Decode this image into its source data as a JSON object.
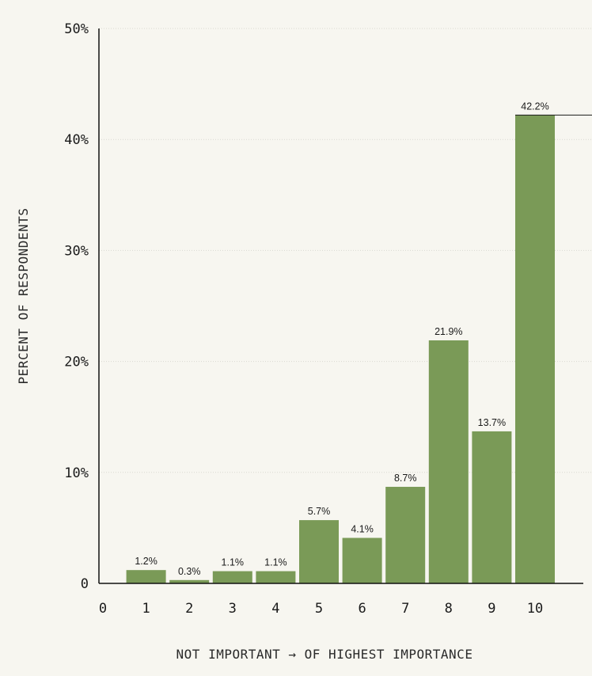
{
  "chart_data": {
    "type": "bar",
    "title": "",
    "xlabel": "NOT IMPORTANT → OF HIGHEST IMPORTANCE",
    "ylabel": "PERCENT OF RESPONDENTS",
    "categories": [
      "0",
      "1",
      "2",
      "3",
      "4",
      "5",
      "6",
      "7",
      "8",
      "9",
      "10"
    ],
    "values": [
      null,
      1.2,
      0.3,
      1.1,
      1.1,
      5.7,
      4.1,
      8.7,
      21.9,
      13.7,
      42.2
    ],
    "data_labels": [
      "",
      "1.2%",
      "0.3%",
      "1.1%",
      "1.1%",
      "5.7%",
      "4.1%",
      "8.7%",
      "21.9%",
      "13.7%",
      "42.2%"
    ],
    "ylim": [
      0,
      50
    ],
    "yticks": [
      {
        "value": 0,
        "label": "0"
      },
      {
        "value": 10,
        "label": "10%"
      },
      {
        "value": 20,
        "label": "20%"
      },
      {
        "value": 30,
        "label": "30%"
      },
      {
        "value": 40,
        "label": "40%"
      },
      {
        "value": 50,
        "label": "50%"
      }
    ],
    "grid": true,
    "legend": "none",
    "colors": {
      "bar": "#7a9a57",
      "axis": "#111111",
      "grid": "#d9d8d1",
      "background": "#f7f6f0"
    }
  }
}
